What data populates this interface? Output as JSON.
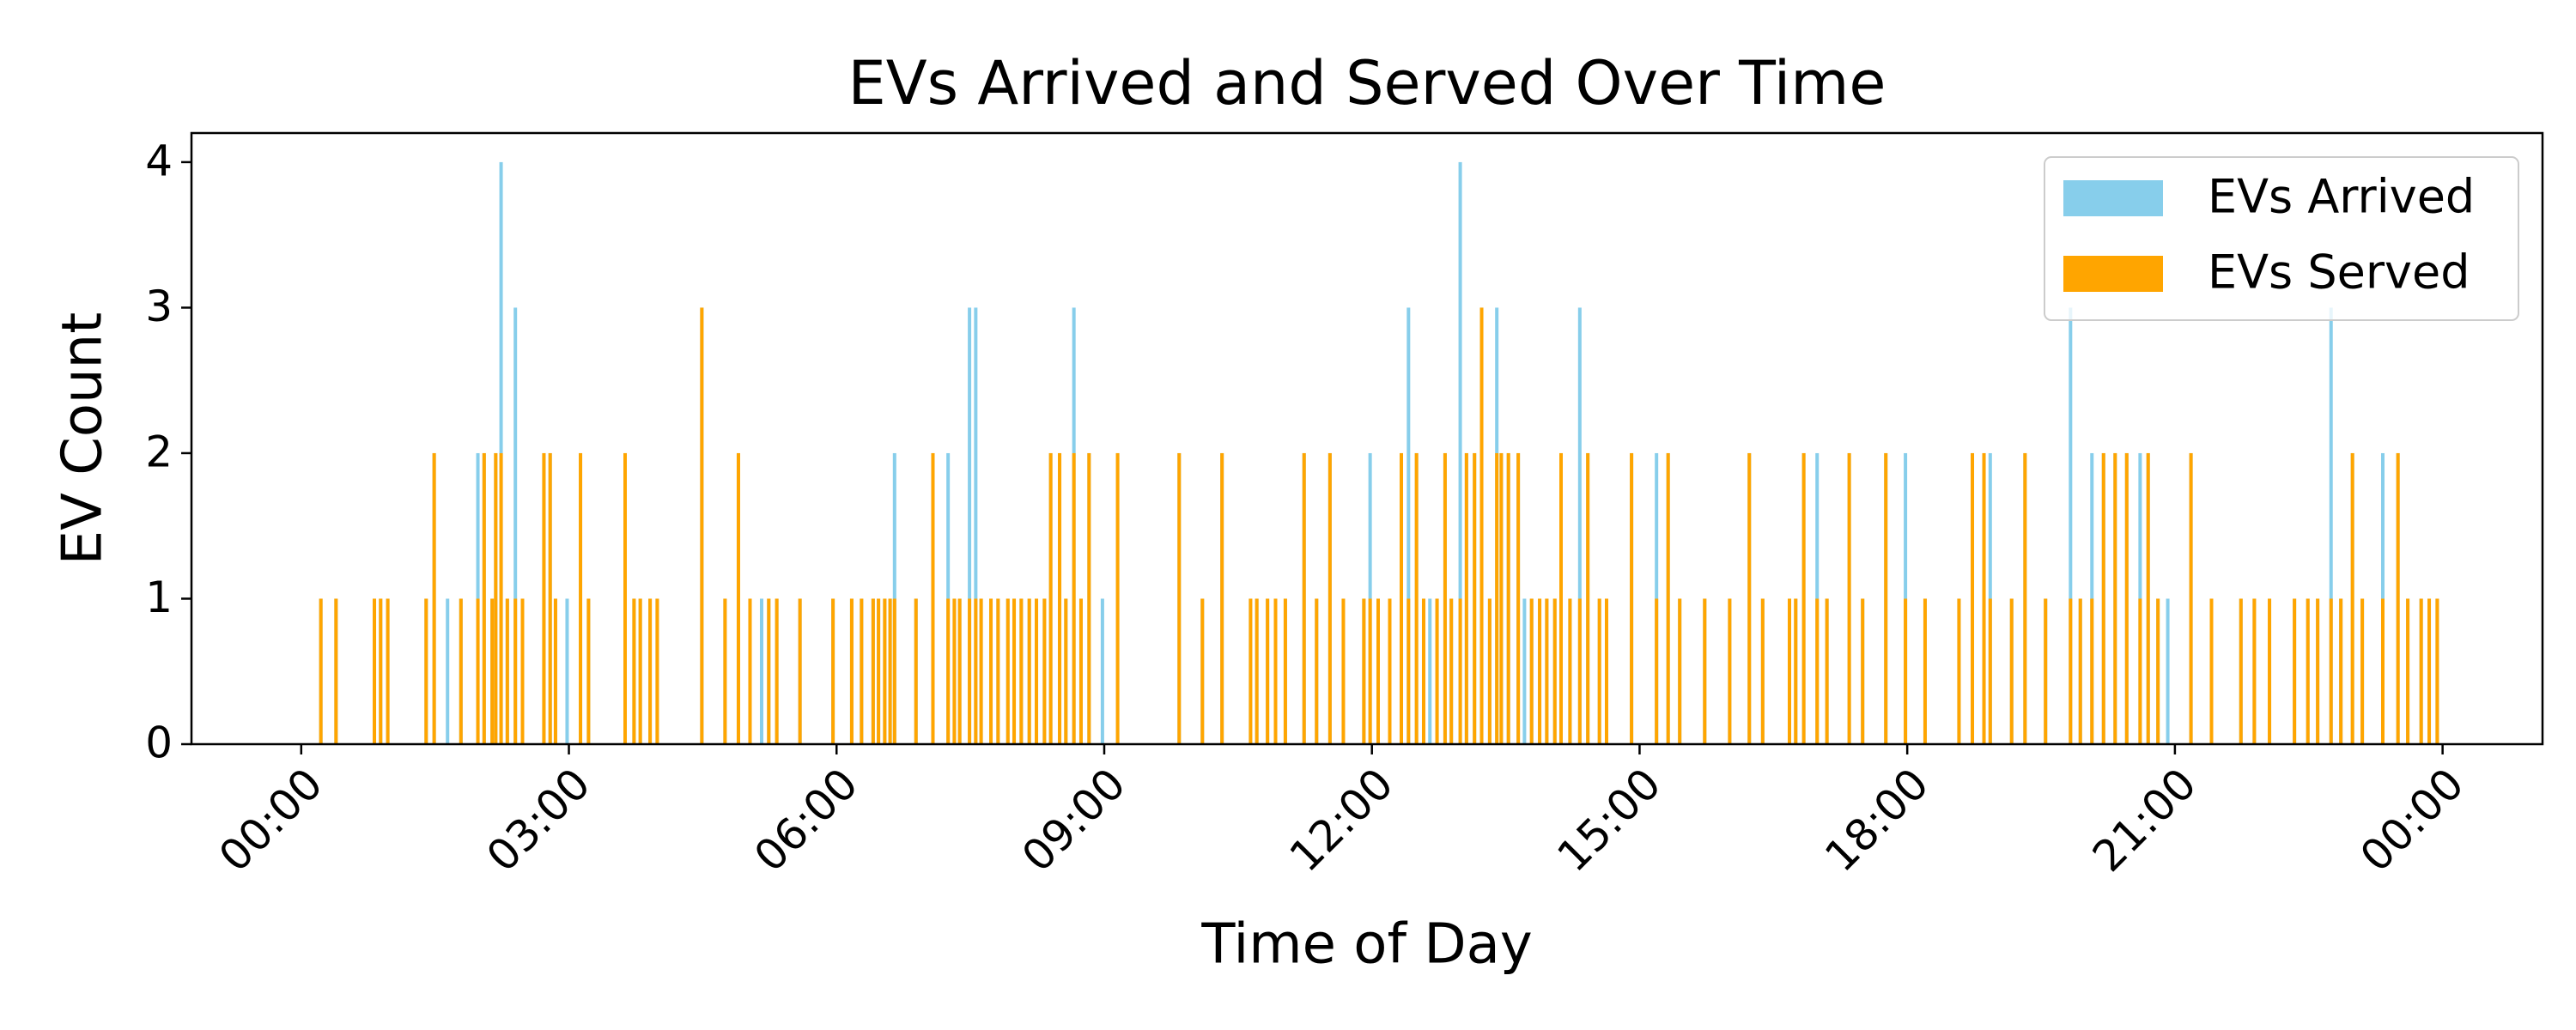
{
  "chart_data": {
    "type": "bar",
    "title": "EVs Arrived and Served Over Time",
    "x_label": "Time of Day",
    "y_label": "EV Count",
    "x": [
      0.22,
      0.39,
      0.82,
      0.89,
      0.97,
      1.4,
      1.49,
      1.64,
      1.79,
      1.98,
      2.05,
      2.14,
      2.18,
      2.24,
      2.31,
      2.4,
      2.48,
      2.72,
      2.79,
      2.85,
      2.98,
      3.13,
      3.22,
      3.63,
      3.73,
      3.8,
      3.91,
      3.99,
      4.49,
      4.75,
      4.9,
      5.03,
      5.16,
      5.24,
      5.33,
      5.59,
      5.96,
      6.17,
      6.28,
      6.41,
      6.47,
      6.54,
      6.6,
      6.65,
      6.89,
      7.08,
      7.25,
      7.32,
      7.38,
      7.49,
      7.56,
      7.62,
      7.73,
      7.81,
      7.92,
      7.99,
      8.07,
      8.16,
      8.24,
      8.33,
      8.4,
      8.5,
      8.57,
      8.66,
      8.74,
      8.83,
      8.98,
      9.15,
      9.84,
      10.1,
      10.32,
      10.64,
      10.71,
      10.83,
      10.92,
      11.03,
      11.24,
      11.38,
      11.53,
      11.68,
      11.91,
      11.98,
      12.07,
      12.2,
      12.33,
      12.41,
      12.5,
      12.58,
      12.65,
      12.73,
      12.82,
      12.89,
      12.99,
      13.06,
      13.15,
      13.23,
      13.32,
      13.4,
      13.45,
      13.53,
      13.64,
      13.71,
      13.79,
      13.88,
      13.96,
      14.05,
      14.12,
      14.22,
      14.33,
      14.42,
      14.55,
      14.63,
      14.91,
      15.19,
      15.32,
      15.45,
      15.73,
      16.01,
      16.23,
      16.38,
      16.68,
      16.75,
      16.84,
      16.99,
      17.1,
      17.35,
      17.5,
      17.76,
      17.98,
      18.2,
      18.58,
      18.73,
      18.86,
      18.93,
      19.17,
      19.32,
      19.55,
      19.83,
      19.94,
      20.07,
      20.2,
      20.33,
      20.46,
      20.61,
      20.7,
      20.81,
      20.92,
      21.18,
      21.41,
      21.74,
      21.89,
      22.06,
      22.34,
      22.49,
      22.6,
      22.75,
      22.86,
      22.99,
      23.1,
      23.33,
      23.5,
      23.61,
      23.76,
      23.85,
      23.94
    ],
    "series": [
      {
        "name": "EVs Arrived",
        "color": "#87ceeb",
        "values": [
          1,
          1,
          1,
          1,
          1,
          1,
          2,
          1,
          1,
          2,
          2,
          1,
          2,
          4,
          1,
          3,
          1,
          2,
          2,
          1,
          1,
          2,
          1,
          2,
          1,
          1,
          1,
          1,
          3,
          1,
          2,
          1,
          1,
          1,
          1,
          1,
          1,
          1,
          1,
          1,
          1,
          1,
          1,
          2,
          1,
          2,
          2,
          1,
          1,
          3,
          3,
          1,
          1,
          1,
          1,
          1,
          1,
          1,
          1,
          1,
          2,
          2,
          1,
          3,
          1,
          2,
          1,
          2,
          2,
          1,
          2,
          1,
          1,
          1,
          1,
          1,
          2,
          1,
          2,
          1,
          1,
          2,
          1,
          1,
          2,
          3,
          2,
          1,
          1,
          1,
          2,
          1,
          4,
          2,
          2,
          3,
          1,
          3,
          2,
          2,
          2,
          1,
          1,
          1,
          1,
          1,
          2,
          1,
          3,
          2,
          1,
          1,
          2,
          2,
          2,
          1,
          1,
          1,
          2,
          1,
          1,
          1,
          2,
          2,
          1,
          2,
          1,
          2,
          2,
          1,
          1,
          2,
          2,
          2,
          1,
          2,
          1,
          3,
          1,
          2,
          2,
          2,
          2,
          2,
          2,
          1,
          1,
          2,
          1,
          1,
          1,
          1,
          1,
          1,
          1,
          3,
          1,
          2,
          1,
          2,
          2,
          1,
          1,
          1,
          1
        ]
      },
      {
        "name": "EVs Served",
        "color": "#ffa500",
        "values": [
          1,
          1,
          1,
          1,
          1,
          1,
          2,
          0,
          1,
          1,
          2,
          1,
          2,
          2,
          1,
          1,
          1,
          2,
          2,
          1,
          0,
          2,
          1,
          2,
          1,
          1,
          1,
          1,
          3,
          1,
          2,
          1,
          0,
          1,
          1,
          1,
          1,
          1,
          1,
          1,
          1,
          1,
          1,
          1,
          1,
          2,
          1,
          1,
          1,
          1,
          1,
          1,
          1,
          1,
          1,
          1,
          1,
          1,
          1,
          1,
          2,
          2,
          1,
          2,
          1,
          2,
          0,
          2,
          2,
          1,
          2,
          1,
          1,
          1,
          1,
          1,
          2,
          1,
          2,
          1,
          1,
          1,
          1,
          1,
          2,
          1,
          2,
          1,
          0,
          1,
          2,
          1,
          1,
          2,
          2,
          3,
          1,
          2,
          2,
          2,
          2,
          0,
          1,
          1,
          1,
          1,
          2,
          1,
          1,
          2,
          1,
          1,
          2,
          1,
          2,
          1,
          1,
          1,
          2,
          1,
          1,
          1,
          2,
          1,
          1,
          2,
          1,
          2,
          1,
          1,
          1,
          2,
          2,
          1,
          1,
          2,
          1,
          1,
          1,
          1,
          2,
          2,
          2,
          1,
          2,
          1,
          0,
          2,
          1,
          1,
          1,
          1,
          1,
          1,
          1,
          1,
          1,
          2,
          1,
          1,
          2,
          1,
          1,
          1,
          1
        ]
      }
    ],
    "xlim": [
      -1.23,
      25.12
    ],
    "xticks": [
      {
        "value": 0,
        "label": "00:00"
      },
      {
        "value": 3,
        "label": "03:00"
      },
      {
        "value": 6,
        "label": "06:00"
      },
      {
        "value": 9,
        "label": "09:00"
      },
      {
        "value": 12,
        "label": "12:00"
      },
      {
        "value": 15,
        "label": "15:00"
      },
      {
        "value": 18,
        "label": "18:00"
      },
      {
        "value": 21,
        "label": "21:00"
      },
      {
        "value": 24,
        "label": "00:00"
      }
    ],
    "ylim": [
      0,
      4.2
    ],
    "yticks": [
      0,
      1,
      2,
      3,
      4
    ],
    "legend": "upper right",
    "grid": false
  }
}
